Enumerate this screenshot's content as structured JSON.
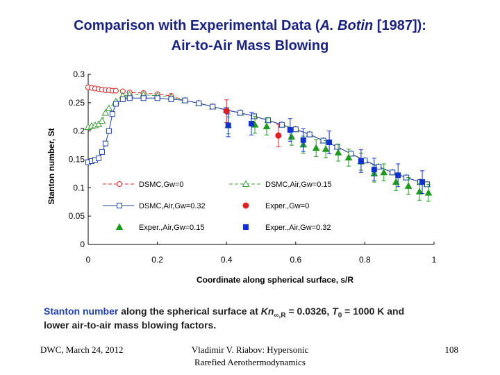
{
  "title": {
    "line1": [
      "Comparison with Experimental Data (",
      "A. Botin",
      " [1987]):"
    ],
    "line2": "Air-to-Air Mass Blowing"
  },
  "caption": {
    "line1": [
      "Stanton number",
      " along the spherical surface at ",
      "Kn",
      "∞,R",
      " = 0.0326, ",
      "T",
      "0",
      " = 1000 K and"
    ],
    "line2": "lower air-to-air mass blowing factors."
  },
  "footer": {
    "left": "DWC, March 24, 2012",
    "center": [
      "Vladimir V. Riabov: Hypersonic",
      "Rarefied Aerothermodynamics"
    ],
    "right": "108"
  },
  "chart_data": {
    "type": "line",
    "x_label": "Coordinate along spherical surface, s/R",
    "y_label": "Stanton number, St",
    "xlim": [
      0,
      1
    ],
    "xticks": [
      0,
      0.2,
      0.4,
      0.6,
      0.8,
      1
    ],
    "ylim": [
      0,
      0.3
    ],
    "yticks": [
      0,
      0.05,
      0.1,
      0.15,
      0.2,
      0.25,
      0.3
    ],
    "series": [
      {
        "name": "DSMC,Gw=0",
        "color": "#d62020",
        "line": "dashed",
        "marker": "circle-open",
        "x": [
          0,
          0.01,
          0.02,
          0.03,
          0.04,
          0.05,
          0.06,
          0.07,
          0.08,
          0.1,
          0.12,
          0.16,
          0.2,
          0.24,
          0.28,
          0.32,
          0.36,
          0.4,
          0.44,
          0.48,
          0.52,
          0.56,
          0.6,
          0.64,
          0.68,
          0.72,
          0.76,
          0.8,
          0.84,
          0.88,
          0.92,
          0.96,
          0.98
        ],
        "values": [
          0.277,
          0.276,
          0.275,
          0.274,
          0.273,
          0.272,
          0.272,
          0.271,
          0.271,
          0.27,
          0.268,
          0.267,
          0.265,
          0.262,
          0.254,
          0.249,
          0.243,
          0.237,
          0.232,
          0.226,
          0.219,
          0.211,
          0.203,
          0.194,
          0.183,
          0.172,
          0.16,
          0.148,
          0.137,
          0.127,
          0.118,
          0.11,
          0.106
        ]
      },
      {
        "name": "DSMC,Air,Gw=0.15",
        "color": "#3a9a3a",
        "line": "dashed",
        "marker": "triangle-open",
        "x": [
          0,
          0.01,
          0.02,
          0.03,
          0.04,
          0.05,
          0.06,
          0.08,
          0.1,
          0.12,
          0.16,
          0.2,
          0.24,
          0.28,
          0.32,
          0.36,
          0.4,
          0.44,
          0.48,
          0.52,
          0.56,
          0.6,
          0.64,
          0.68,
          0.72,
          0.76,
          0.8,
          0.84,
          0.88,
          0.92,
          0.96,
          0.98
        ],
        "values": [
          0.207,
          0.209,
          0.21,
          0.212,
          0.218,
          0.232,
          0.24,
          0.252,
          0.262,
          0.264,
          0.264,
          0.262,
          0.26,
          0.254,
          0.249,
          0.243,
          0.237,
          0.232,
          0.226,
          0.219,
          0.211,
          0.203,
          0.194,
          0.183,
          0.172,
          0.16,
          0.148,
          0.137,
          0.127,
          0.118,
          0.11,
          0.106
        ]
      },
      {
        "name": "DSMC,Air,Gw=0.32",
        "color": "#1f3fa8",
        "line": "solid",
        "marker": "square-open",
        "x": [
          0,
          0.01,
          0.02,
          0.03,
          0.04,
          0.05,
          0.06,
          0.07,
          0.08,
          0.1,
          0.12,
          0.16,
          0.2,
          0.24,
          0.28,
          0.32,
          0.36,
          0.4,
          0.44,
          0.48,
          0.52,
          0.56,
          0.6,
          0.64,
          0.68,
          0.72,
          0.76,
          0.8,
          0.84,
          0.88,
          0.92,
          0.96,
          0.98
        ],
        "values": [
          0.145,
          0.147,
          0.149,
          0.152,
          0.163,
          0.178,
          0.2,
          0.23,
          0.248,
          0.256,
          0.258,
          0.258,
          0.258,
          0.256,
          0.254,
          0.249,
          0.243,
          0.237,
          0.232,
          0.226,
          0.219,
          0.211,
          0.203,
          0.194,
          0.183,
          0.172,
          0.16,
          0.148,
          0.137,
          0.127,
          0.118,
          0.11,
          0.106
        ]
      },
      {
        "name": "Exper.,Gw=0",
        "color": "#e02020",
        "line": "none",
        "marker": "circle",
        "x": [
          0.4,
          0.55
        ],
        "values": [
          0.235,
          0.192
        ],
        "errors": [
          0.02,
          0.02
        ]
      },
      {
        "name": "Exper.,Air,Gw=0.15",
        "color": "#1f9a1f",
        "line": "none",
        "marker": "triangle",
        "x": [
          0.405,
          0.482,
          0.516,
          0.588,
          0.622,
          0.659,
          0.687,
          0.723,
          0.753,
          0.789,
          0.827,
          0.855,
          0.89,
          0.926,
          0.958,
          0.984
        ],
        "values": [
          0.21,
          0.211,
          0.208,
          0.19,
          0.176,
          0.17,
          0.168,
          0.162,
          0.153,
          0.146,
          0.125,
          0.127,
          0.11,
          0.103,
          0.093,
          0.091
        ],
        "errors": [
          0.015,
          0.015,
          0.015,
          0.015,
          0.015,
          0.015,
          0.015,
          0.015,
          0.015,
          0.015,
          0.015,
          0.015,
          0.015,
          0.015,
          0.015,
          0.015
        ]
      },
      {
        "name": "Exper.,Air,Gw=0.32",
        "color": "#1030d0",
        "line": "none",
        "marker": "square",
        "x": [
          0.405,
          0.472,
          0.584,
          0.622,
          0.697,
          0.789,
          0.827,
          0.896,
          0.966
        ],
        "values": [
          0.21,
          0.213,
          0.202,
          0.184,
          0.18,
          0.147,
          0.132,
          0.122,
          0.11
        ],
        "errors": [
          0.02,
          0.02,
          0.02,
          0.02,
          0.02,
          0.02,
          0.02,
          0.02,
          0.02
        ]
      }
    ]
  }
}
